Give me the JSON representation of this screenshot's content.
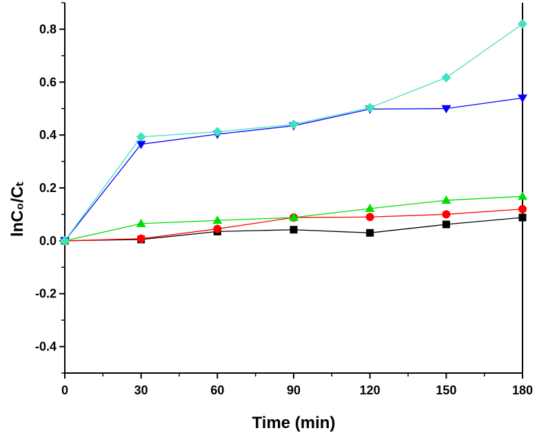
{
  "chart_data": {
    "type": "line",
    "title": "",
    "xlabel": "Time (min)",
    "ylabel": "lnC₀/Cₜ",
    "x": [
      0,
      30,
      60,
      90,
      120,
      150,
      180
    ],
    "xticks": [
      "0",
      "30",
      "60",
      "90",
      "120",
      "150",
      "180"
    ],
    "yticks": [
      "-0.4",
      "-0.2",
      "0.0",
      "0.2",
      "0.4",
      "0.6",
      "0.8"
    ],
    "xlim": [
      0,
      180
    ],
    "ylim": [
      -0.5,
      0.9
    ],
    "grid": false,
    "legend": "none",
    "series": [
      {
        "name": "series-1",
        "marker": "square",
        "color": "#000000",
        "values": [
          0.0,
          0.005,
          0.035,
          0.042,
          0.03,
          0.062,
          0.088
        ]
      },
      {
        "name": "series-2",
        "marker": "circle",
        "color": "#ff0000",
        "values": [
          0.0,
          0.008,
          0.045,
          0.088,
          0.09,
          0.1,
          0.12
        ]
      },
      {
        "name": "series-3",
        "marker": "triangle-up",
        "color": "#00dd00",
        "values": [
          0.0,
          0.065,
          0.077,
          0.088,
          0.122,
          0.153,
          0.168
        ]
      },
      {
        "name": "series-4",
        "marker": "triangle-down",
        "color": "#0000ff",
        "values": [
          0.0,
          0.365,
          0.403,
          0.435,
          0.498,
          0.5,
          0.54
        ]
      },
      {
        "name": "series-5",
        "marker": "diamond",
        "color": "#40e0c0",
        "values": [
          0.0,
          0.393,
          0.412,
          0.44,
          0.503,
          0.617,
          0.82
        ]
      }
    ]
  }
}
